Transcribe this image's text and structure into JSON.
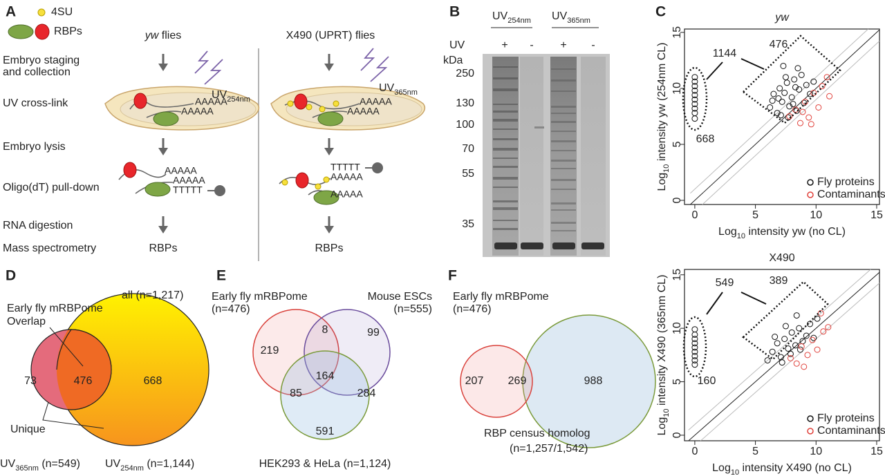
{
  "panels": {
    "a": {
      "letter": "A",
      "legend": {
        "small": "4SU",
        "rbp": "RBPs"
      },
      "columns": [
        {
          "strain": "yw",
          "suffix": " flies",
          "uv": {
            "main": "UV",
            "sub": "254nm"
          },
          "result": "RBPs"
        },
        {
          "strain": "X490 (UPRT) flies",
          "uv": {
            "main": "UV",
            "sub": "365nm"
          },
          "result": "RBPs"
        }
      ],
      "steps": [
        "Embryo staging",
        "and collection",
        "UV cross-link",
        "Embryo lysis",
        "Oligo(dT) pull-down",
        "RNA digestion",
        "Mass spectrometry"
      ],
      "polya": "AAAAA",
      "polyt": "TTTTT"
    },
    "b": {
      "letter": "B",
      "lanes": [
        {
          "main": "UV",
          "sub": "254nm"
        },
        {
          "main": "UV",
          "sub": "365nm"
        }
      ],
      "uv_label": "UV",
      "signs": [
        "+",
        "-",
        "+",
        "-"
      ],
      "unit": "kDa",
      "markers": [
        250,
        130,
        100,
        70,
        55,
        35
      ]
    },
    "c": {
      "letter": "C"
    },
    "d": {
      "letter": "D",
      "all": "all (n=1,217)",
      "overlap_label": [
        "Early fly mRBPome",
        "Overlap"
      ],
      "unique_label": "Unique",
      "counts": [
        73,
        476,
        668
      ],
      "sets": [
        {
          "main": "UV",
          "sub": "365nm",
          "n": " (n=549)"
        },
        {
          "main": "UV",
          "sub": "254nm",
          "n": " (n=1,144)"
        }
      ]
    },
    "e": {
      "letter": "E",
      "sets": [
        {
          "label": "Early fly mRBPome",
          "n": "(n=476)"
        },
        {
          "label": "Mouse ESCs",
          "n": "(n=555)"
        },
        {
          "label": "HEK293 & HeLa (n=1,124)"
        }
      ],
      "counts": [
        219,
        8,
        99,
        85,
        164,
        284,
        591
      ]
    },
    "f": {
      "letter": "F",
      "sets": [
        {
          "label": "Early fly mRBPome",
          "n": "(n=476)"
        },
        {
          "label": "RBP census homolog",
          "n": "(n=1,257/1,542)"
        }
      ],
      "counts": [
        207,
        269,
        988
      ]
    }
  },
  "chart_data": [
    {
      "type": "scatter",
      "title": "yw",
      "xlabel": {
        "main": "Log",
        "sub": "10",
        "rest": " intensity yw (no CL)"
      },
      "ylabel": {
        "main": "Log",
        "sub": "10",
        "rest": " intensity yw (254nm CL)"
      },
      "xlim": [
        -0.85,
        15.23
      ],
      "ylim": [
        -0.37,
        15.3
      ],
      "xticks": [
        0,
        5,
        10,
        15
      ],
      "yticks": [
        0,
        5,
        10,
        15
      ],
      "annotations": [
        "1144",
        "476",
        "668"
      ],
      "series": [
        {
          "name": "Fly proteins",
          "color": "#111111",
          "x": [
            0,
            0,
            0,
            0,
            0,
            0,
            0,
            0,
            0,
            0,
            6.2,
            6.5,
            6.8,
            7.0,
            7.2,
            7.4,
            7.6,
            7.8,
            8.0,
            8.2,
            8.4,
            8.6,
            8.8,
            9.0,
            9.2,
            9.5,
            7.1,
            7.5,
            8.1,
            8.5,
            6.9,
            7.7,
            8.3,
            9.8,
            6.4,
            7.3
          ],
          "values": [
            7.3,
            7.8,
            8.2,
            8.6,
            9.0,
            9.4,
            9.8,
            10.2,
            10.6,
            11.0,
            8.3,
            9.5,
            7.8,
            10.0,
            8.8,
            9.6,
            10.5,
            8.4,
            9.2,
            10.8,
            8.0,
            9.9,
            11.2,
            8.7,
            10.3,
            9.5,
            7.6,
            11.0,
            8.6,
            11.8,
            9.1,
            7.4,
            10.1,
            10.6,
            8.9,
            12.0
          ]
        },
        {
          "name": "Contaminants",
          "color": "#e0403a",
          "x": [
            7.8,
            8.3,
            8.7,
            9.1,
            9.4,
            9.8,
            10.2,
            10.5,
            10.9,
            11.1,
            9.6,
            8.9
          ],
          "values": [
            7.5,
            8.1,
            6.9,
            8.8,
            7.4,
            9.6,
            8.3,
            10.2,
            11.0,
            9.3,
            6.8,
            7.9
          ]
        }
      ]
    },
    {
      "type": "scatter",
      "title": "X490",
      "xlabel": {
        "main": "Log",
        "sub": "10",
        "rest": " intensity X490 (no CL)"
      },
      "ylabel": {
        "main": "Log",
        "sub": "10",
        "rest": " intensity X490 (365nm CL)"
      },
      "xlim": [
        -0.85,
        15.23
      ],
      "ylim": [
        -0.52,
        15.5
      ],
      "xticks": [
        0,
        5,
        10,
        15
      ],
      "yticks": [
        0,
        5,
        10,
        15
      ],
      "annotations": [
        "549",
        "389",
        "160"
      ],
      "series": [
        {
          "name": "Fly proteins",
          "color": "#111111",
          "x": [
            0,
            0,
            0,
            0,
            0,
            0,
            0,
            0,
            0,
            6.0,
            6.4,
            6.8,
            7.1,
            7.4,
            7.7,
            8.0,
            8.3,
            8.6,
            8.9,
            9.2,
            9.5,
            9.8,
            10.1,
            7.2,
            7.9,
            8.4,
            6.6,
            7.5,
            8.7
          ],
          "values": [
            6.6,
            7.0,
            7.4,
            7.8,
            8.2,
            8.6,
            9.0,
            9.4,
            9.9,
            7.0,
            7.8,
            8.6,
            7.3,
            9.0,
            8.1,
            9.6,
            8.4,
            10.0,
            8.8,
            9.3,
            10.4,
            9.1,
            10.9,
            6.8,
            7.6,
            11.2,
            9.2,
            10.2,
            8.0
          ]
        },
        {
          "name": "Contaminants",
          "color": "#e0403a",
          "x": [
            7.9,
            8.4,
            8.8,
            9.3,
            9.7,
            10.1,
            10.6,
            11.0,
            9.0,
            10.4
          ],
          "values": [
            7.2,
            6.7,
            8.3,
            7.5,
            8.9,
            8.0,
            9.7,
            10.1,
            6.4,
            11.4
          ]
        }
      ]
    }
  ]
}
